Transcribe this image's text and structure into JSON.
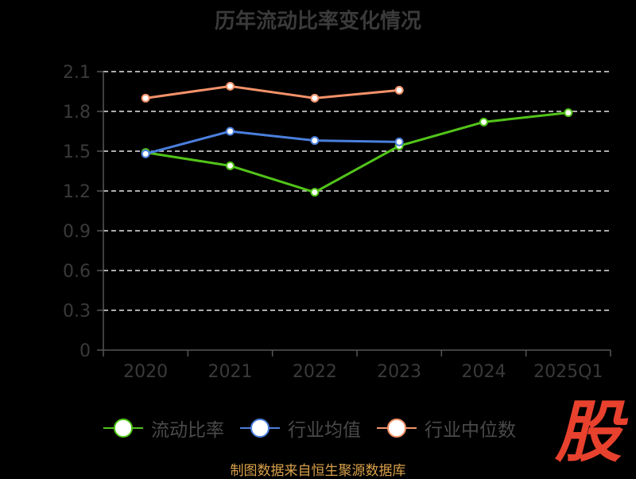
{
  "chart_data": {
    "type": "line",
    "title": "历年流动比率变化情况",
    "categories": [
      "2020",
      "2021",
      "2022",
      "2023",
      "2024",
      "2025Q1"
    ],
    "y_ticks": [
      "0",
      "0.3",
      "0.6",
      "0.9",
      "1.2",
      "1.5",
      "1.8",
      "2.1"
    ],
    "ylim": [
      0,
      2.1
    ],
    "grid": true,
    "legend_position": "bottom",
    "series": [
      {
        "name": "流动比率",
        "color": "#52c41a",
        "values": [
          1.49,
          1.39,
          1.19,
          1.54,
          1.72,
          1.79
        ]
      },
      {
        "name": "行业均值",
        "color": "#4a7fdc",
        "values": [
          1.48,
          1.65,
          1.58,
          1.57,
          null,
          null
        ]
      },
      {
        "name": "行业中位数",
        "color": "#f4926a",
        "values": [
          1.9,
          1.99,
          1.9,
          1.96,
          null,
          null
        ]
      }
    ]
  },
  "logo_text": "股",
  "source": "制图数据来自恒生聚源数据库"
}
